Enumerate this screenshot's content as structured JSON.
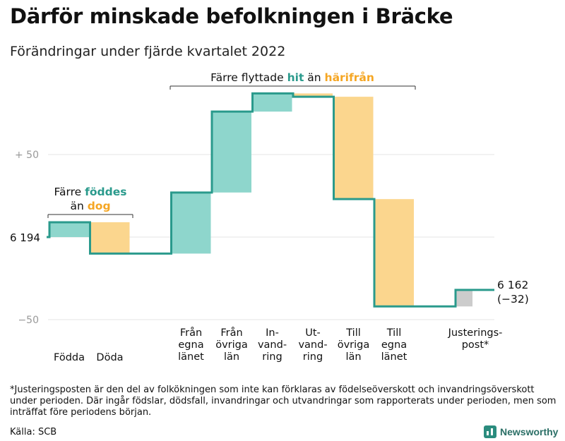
{
  "title": "Därför minskade befolkningen i Bräcke",
  "subtitle": "Förändringar under fjärde kvartalet 2022",
  "colors": {
    "increase": "#8ed6cc",
    "decrease": "#fbd68e",
    "adjustment": "#cccccc",
    "line": "#2a9a8c",
    "teal_text": "#2a9a8c",
    "orange_text": "#f5a623",
    "grid": "#e6e6e6"
  },
  "chart_data": {
    "type": "bar",
    "subtype": "waterfall",
    "start_value": 6194,
    "start_label": "6 194",
    "end_value": 6162,
    "end_label": "6 162",
    "net_change_label": "(−32)",
    "y_ticks": [
      {
        "value": 50,
        "label": "+ 50"
      },
      {
        "value": -50,
        "label": "−50"
      }
    ],
    "y_ticks_relative_to_start": true,
    "grid": true,
    "steps": [
      {
        "label_lines": [
          "Födda"
        ],
        "delta": 9,
        "kind": "increase"
      },
      {
        "label_lines": [
          "Döda"
        ],
        "delta": -19,
        "kind": "decrease"
      },
      {
        "label_lines": [],
        "delta": 0,
        "kind": "gap"
      },
      {
        "label_lines": [
          "Från",
          "egna",
          "länet"
        ],
        "delta": 37,
        "kind": "increase"
      },
      {
        "label_lines": [
          "Från",
          "övriga",
          "län"
        ],
        "delta": 49,
        "kind": "increase"
      },
      {
        "label_lines": [
          "In-",
          "vand-",
          "ring"
        ],
        "delta": 11,
        "kind": "increase"
      },
      {
        "label_lines": [
          "Ut-",
          "vand-",
          "ring"
        ],
        "delta": -2,
        "kind": "decrease"
      },
      {
        "label_lines": [
          "Till",
          "övriga",
          "län"
        ],
        "delta": -62,
        "kind": "decrease"
      },
      {
        "label_lines": [
          "Till",
          "egna",
          "länet"
        ],
        "delta": -65,
        "kind": "decrease"
      },
      {
        "label_lines": [],
        "delta": 0,
        "kind": "gap"
      },
      {
        "label_lines": [
          "Justerings-",
          "post*"
        ],
        "delta": 10,
        "kind": "adjustment"
      }
    ],
    "annotations": {
      "births_deaths": {
        "line1": "Färre",
        "hl1": "föddes",
        "line2": "än",
        "hl2": "dog"
      },
      "migration": {
        "pre": "Färre flyttade",
        "hl1": "hit",
        "mid": "än",
        "hl2": "härifrån"
      }
    }
  },
  "footnote": "*Justeringsposten är den del av folkökningen som inte kan förklaras av födelseöverskott och invandringsöverskott under perioden. Där ingår födslar, dödsfall, invandringar och utvandringar som rapporterats under perioden, men som inträffat före periodens början.",
  "source": "Källa: SCB",
  "brand": "Newsworthy"
}
